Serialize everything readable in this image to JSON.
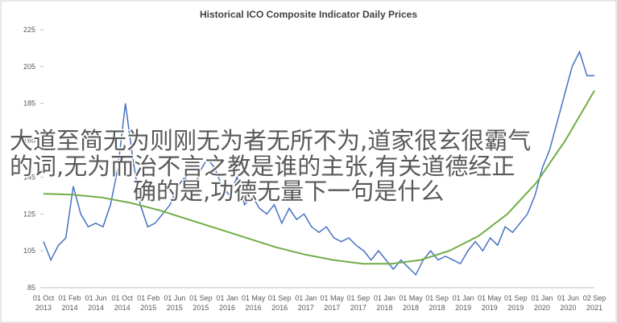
{
  "chart_data": {
    "type": "line",
    "title": "Historical ICO Composite Indicator Daily Prices",
    "xticks": [
      [
        "01 Oct",
        "2013"
      ],
      [
        "01 Feb",
        "2014"
      ],
      [
        "01 Jun",
        "2014"
      ],
      [
        "01 Oct",
        "2014"
      ],
      [
        "01 Feb",
        "2015"
      ],
      [
        "01 Jun",
        "2015"
      ],
      [
        "01 Sep",
        "2015"
      ],
      [
        "01 Jan",
        "2016"
      ],
      [
        "01 May",
        "2016"
      ],
      [
        "01 Sep",
        "2016"
      ],
      [
        "01 Jan",
        "2017"
      ],
      [
        "01 May",
        "2017"
      ],
      [
        "01 Sep",
        "2017"
      ],
      [
        "01 Jan",
        "2018"
      ],
      [
        "01 May",
        "2018"
      ],
      [
        "01 Sep",
        "2018"
      ],
      [
        "01 Jan",
        "2019"
      ],
      [
        "01 May",
        "2019"
      ],
      [
        "01 Sep",
        "2019"
      ],
      [
        "01 Jan",
        "2020"
      ],
      [
        "01 Jun",
        "2020"
      ],
      [
        "02 Sep",
        "2021"
      ]
    ],
    "ylim": [
      85,
      225
    ],
    "yticks": [
      85,
      105,
      125,
      145,
      165,
      185,
      205,
      225
    ],
    "series": [
      {
        "color": "#4472c4",
        "values": [
          110,
          100,
          108,
          112,
          140,
          125,
          118,
          120,
          118,
          130,
          150,
          185,
          155,
          130,
          118,
          120,
          125,
          130,
          140,
          145,
          135,
          148,
          155,
          150,
          140,
          135,
          145,
          130,
          135,
          128,
          125,
          130,
          120,
          128,
          122,
          125,
          118,
          115,
          118,
          112,
          110,
          112,
          108,
          105,
          100,
          105,
          100,
          95,
          100,
          96,
          92,
          100,
          105,
          100,
          102,
          100,
          98,
          105,
          110,
          105,
          112,
          108,
          118,
          115,
          120,
          125,
          135,
          150,
          160,
          175,
          190,
          205,
          213,
          200,
          200
        ]
      },
      {
        "color": "#70ad47",
        "values": [
          136,
          135.5,
          134,
          131,
          127,
          122,
          117,
          112,
          107,
          103,
          100,
          98,
          98,
          100,
          105,
          113,
          125,
          142,
          165,
          192
        ]
      }
    ]
  },
  "overlay": {
    "lines": [
      "大道至简无为则刚无为者无所不为,道家很玄很霸气",
      "的词,无为而治不言之教是谁的主张,有关道德经正",
      "确的是,功德无量下一句是什么"
    ],
    "color": "#ff8000"
  }
}
